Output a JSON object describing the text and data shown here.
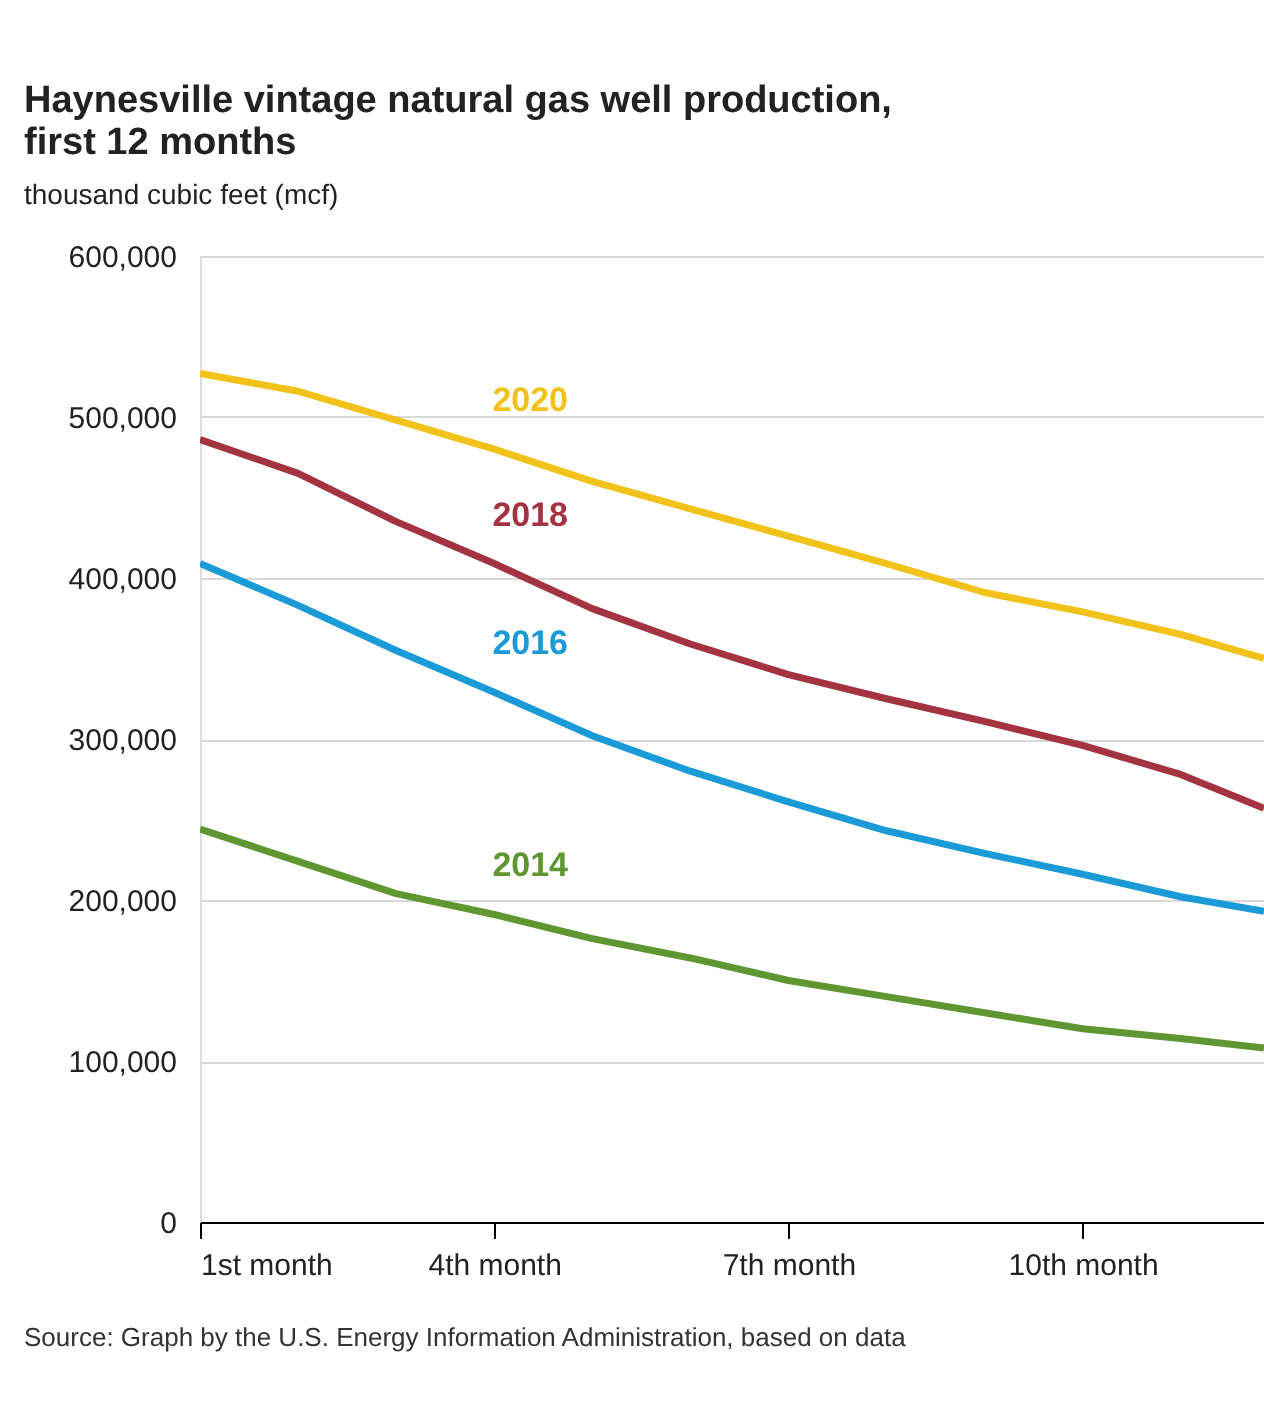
{
  "chart_data": {
    "type": "line",
    "title": "Haynesville vintage natural gas well production, first 12 months",
    "ylabel": "thousand cubic feet (mcf)",
    "x": [
      1,
      2,
      3,
      4,
      5,
      6,
      7,
      8,
      9,
      10,
      11,
      11.85
    ],
    "series": [
      {
        "name": "2020",
        "color": "#f2c21b",
        "values": [
          527000,
          516000,
          498000,
          480000,
          460000,
          443000,
          426000,
          409000,
          391000,
          379000,
          365000,
          350000
        ]
      },
      {
        "name": "2018",
        "color": "#a33340",
        "values": [
          486000,
          465000,
          435000,
          409000,
          381000,
          359000,
          340000,
          325000,
          311000,
          296000,
          278000,
          257000
        ]
      },
      {
        "name": "2016",
        "color": "#1a9ad6",
        "values": [
          409000,
          383000,
          355000,
          329000,
          302000,
          280000,
          261000,
          243000,
          229000,
          216000,
          202000,
          193000
        ]
      },
      {
        "name": "2014",
        "color": "#5e9732",
        "values": [
          244000,
          224000,
          204000,
          191000,
          176000,
          164000,
          150000,
          140000,
          130000,
          120000,
          114000,
          108000
        ]
      }
    ],
    "xlim": [
      1,
      11.85
    ],
    "xticks": [
      {
        "value": 1,
        "label": "1st month"
      },
      {
        "value": 4,
        "label": "4th month"
      },
      {
        "value": 7,
        "label": "7th month"
      },
      {
        "value": 10,
        "label": "10th month"
      }
    ],
    "ylim": [
      0,
      600000
    ],
    "yticks": [
      {
        "value": 0,
        "label": "0"
      },
      {
        "value": 100000,
        "label": "100,000"
      },
      {
        "value": 200000,
        "label": "200,000"
      },
      {
        "value": 300000,
        "label": "300,000"
      },
      {
        "value": 400000,
        "label": "400,000"
      },
      {
        "value": 500000,
        "label": "500,000"
      },
      {
        "value": 600000,
        "label": "600,000"
      }
    ],
    "grid": "y",
    "legend": false,
    "marker": "none",
    "line_style": "solid",
    "annotations": [
      "Source: Graph by the U.S. Energy Information Administration, based on data"
    ]
  }
}
